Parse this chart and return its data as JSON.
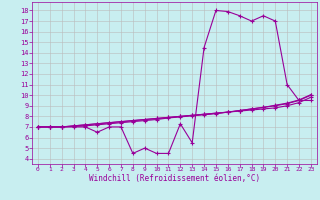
{
  "xlabel": "Windchill (Refroidissement éolien,°C)",
  "bg_color": "#c8eef0",
  "line_color": "#990099",
  "grid_color": "#bbbbbb",
  "x_hours": [
    0,
    1,
    2,
    3,
    4,
    5,
    6,
    7,
    8,
    9,
    10,
    11,
    12,
    13,
    14,
    15,
    16,
    17,
    18,
    19,
    20,
    21,
    22,
    23
  ],
  "y_temp": [
    7.0,
    7.0,
    7.0,
    7.0,
    7.0,
    6.5,
    7.0,
    7.0,
    4.5,
    5.0,
    4.5,
    4.5,
    7.3,
    5.5,
    14.5,
    18.0,
    17.9,
    17.5,
    17.0,
    17.5,
    17.0,
    11.0,
    9.5,
    9.5
  ],
  "y_line2": [
    7.0,
    7.0,
    7.0,
    7.1,
    7.2,
    7.3,
    7.4,
    7.5,
    7.6,
    7.7,
    7.8,
    7.9,
    8.0,
    8.1,
    8.2,
    8.3,
    8.4,
    8.5,
    8.6,
    8.7,
    8.8,
    9.0,
    9.3,
    9.8
  ],
  "y_line3": [
    7.0,
    7.0,
    7.0,
    7.1,
    7.2,
    7.3,
    7.4,
    7.5,
    7.6,
    7.7,
    7.8,
    7.9,
    8.0,
    8.1,
    8.2,
    8.3,
    8.4,
    8.55,
    8.7,
    8.85,
    9.0,
    9.2,
    9.5,
    10.0
  ],
  "y_line4": [
    7.0,
    7.0,
    7.0,
    7.05,
    7.1,
    7.2,
    7.3,
    7.4,
    7.5,
    7.6,
    7.7,
    7.85,
    7.95,
    8.05,
    8.15,
    8.25,
    8.4,
    8.55,
    8.7,
    8.85,
    9.05,
    9.25,
    9.55,
    10.05
  ],
  "ylim": [
    3.5,
    18.8
  ],
  "xlim": [
    -0.5,
    23.5
  ],
  "yticks": [
    4,
    5,
    6,
    7,
    8,
    9,
    10,
    11,
    12,
    13,
    14,
    15,
    16,
    17,
    18
  ],
  "xticks": [
    0,
    1,
    2,
    3,
    4,
    5,
    6,
    7,
    8,
    9,
    10,
    11,
    12,
    13,
    14,
    15,
    16,
    17,
    18,
    19,
    20,
    21,
    22,
    23
  ]
}
